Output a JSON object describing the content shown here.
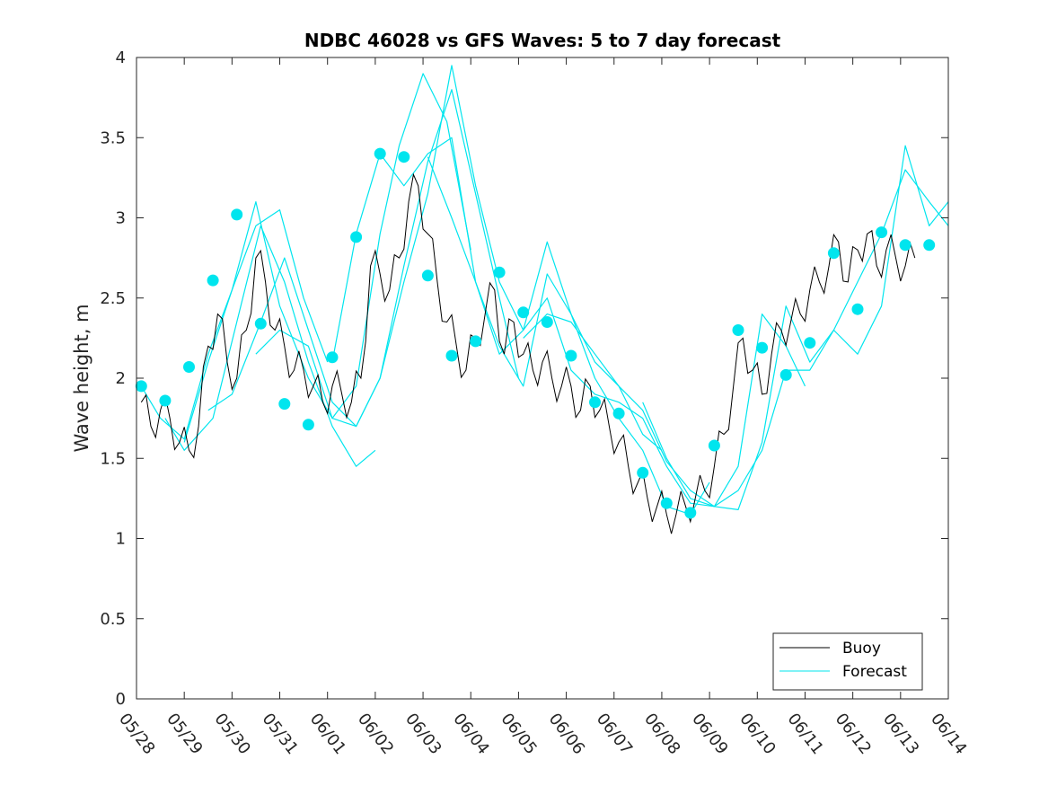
{
  "chart_data": {
    "type": "line",
    "title": "NDBC 46028 vs GFS Waves: 5 to 7 day forecast",
    "xlabel": "",
    "ylabel": "Wave height, m",
    "xlim": [
      0,
      17
    ],
    "ylim": [
      0,
      4
    ],
    "x_unit": "days since 05/28",
    "x_ticks": [
      0,
      1,
      2,
      3,
      4,
      5,
      6,
      7,
      8,
      9,
      10,
      11,
      12,
      13,
      14,
      15,
      16,
      17
    ],
    "x_tick_labels": [
      "05/28",
      "05/29",
      "05/30",
      "05/31",
      "06/01",
      "06/02",
      "06/03",
      "06/04",
      "06/05",
      "06/06",
      "06/07",
      "06/08",
      "06/09",
      "06/10",
      "06/11",
      "06/12",
      "06/13",
      "06/14"
    ],
    "y_ticks": [
      0,
      0.5,
      1,
      1.5,
      2,
      2.5,
      3,
      3.5,
      4
    ],
    "y_tick_labels": [
      "0",
      "0.5",
      "1",
      "1.5",
      "2",
      "2.5",
      "3",
      "3.5",
      "4"
    ],
    "legend": {
      "position": "bottom-right",
      "entries": [
        {
          "label": "Buoy",
          "color": "#000000"
        },
        {
          "label": "Forecast",
          "color": "#00e5ee"
        }
      ]
    },
    "series": [
      {
        "name": "Buoy",
        "color": "#000000",
        "x": [
          0.1,
          0.3,
          0.5,
          0.7,
          0.9,
          1.1,
          1.3,
          1.5,
          1.7,
          1.9,
          2.1,
          2.3,
          2.5,
          2.7,
          2.9,
          3.1,
          3.3,
          3.5,
          3.7,
          3.9,
          4.1,
          4.3,
          4.5,
          4.7,
          4.9,
          5.1,
          5.3,
          5.5,
          5.7,
          5.9,
          6.1,
          6.3,
          6.5,
          6.7,
          6.9,
          7.1,
          7.3,
          7.5,
          7.7,
          7.9,
          8.1,
          8.3,
          8.5,
          8.7,
          8.9,
          9.1,
          9.3,
          9.5,
          9.7,
          9.9,
          10.1,
          10.3,
          10.5,
          10.7,
          10.9,
          11.1,
          11.3,
          11.5,
          11.7,
          11.9,
          12.1,
          12.3,
          12.5,
          12.7,
          12.9,
          13.1,
          13.3,
          13.5,
          13.7,
          13.9,
          14.1,
          14.3,
          14.5,
          14.7,
          14.9,
          15.1,
          15.3,
          15.5,
          15.7,
          15.9,
          16.1,
          16.3
        ],
        "y": [
          1.85,
          1.7,
          1.8,
          1.75,
          1.6,
          1.55,
          1.7,
          2.2,
          2.4,
          2.1,
          2.0,
          2.3,
          2.75,
          2.6,
          2.3,
          2.2,
          2.05,
          2.05,
          1.95,
          1.85,
          1.95,
          1.9,
          1.85,
          2.0,
          2.7,
          2.65,
          2.55,
          2.75,
          3.1,
          3.2,
          2.9,
          2.6,
          2.35,
          2.2,
          2.05,
          2.25,
          2.4,
          2.55,
          2.15,
          2.35,
          2.15,
          2.05,
          2.1,
          2.0,
          1.95,
          1.95,
          1.8,
          1.95,
          1.8,
          1.7,
          1.6,
          1.45,
          1.35,
          1.25,
          1.2,
          1.15,
          1.15,
          1.2,
          1.25,
          1.3,
          1.45,
          1.65,
          1.95,
          2.25,
          2.05,
          1.9,
          2.15,
          2.3,
          2.35,
          2.4,
          2.55,
          2.6,
          2.7,
          2.85,
          2.6,
          2.8,
          2.9,
          2.7,
          2.8,
          2.75,
          2.7,
          2.75
        ]
      },
      {
        "name": "Forecast",
        "color": "#00e5ee",
        "segments": [
          {
            "x": [
              0.1,
              0.5,
              1.0,
              1.5,
              2.0,
              2.5,
              3.0,
              3.5,
              4.0
            ],
            "y": [
              1.95,
              1.75,
              1.62,
              2.15,
              2.55,
              2.95,
              3.05,
              2.5,
              2.1
            ]
          },
          {
            "x": [
              0.6,
              1.0,
              1.6,
              2.1,
              2.6,
              3.1,
              3.6,
              4.1,
              4.6,
              5.0
            ],
            "y": [
              1.75,
              1.55,
              1.75,
              2.35,
              2.95,
              2.6,
              2.1,
              1.7,
              1.45,
              1.55
            ]
          },
          {
            "x": [
              1.0,
              1.5,
              2.0,
              2.5,
              3.0,
              3.6,
              4.1,
              4.6,
              5.1,
              5.5,
              6.0,
              6.5,
              7.0
            ],
            "y": [
              1.6,
              2.1,
              2.55,
              3.1,
              2.45,
              2.0,
              1.75,
              1.95,
              2.9,
              3.45,
              3.9,
              3.6,
              2.8
            ]
          },
          {
            "x": [
              1.5,
              2.0,
              2.6,
              3.1,
              3.6,
              4.1,
              4.6,
              5.1,
              5.6,
              6.1,
              6.6,
              7.1,
              7.6,
              8.0
            ],
            "y": [
              1.8,
              1.9,
              2.35,
              2.75,
              2.3,
              1.85,
              1.7,
              2.0,
              2.7,
              3.35,
              3.8,
              3.15,
              2.5,
              2.0
            ]
          },
          {
            "x": [
              2.5,
              3.0,
              3.6,
              4.1,
              4.6,
              5.1,
              5.6,
              6.1,
              6.6,
              7.1,
              7.6,
              8.1,
              8.6,
              9.1,
              9.6,
              10.1,
              10.6,
              11.0
            ],
            "y": [
              2.15,
              2.3,
              2.2,
              1.75,
              1.7,
              2.0,
              2.6,
              3.15,
              3.95,
              3.2,
              2.6,
              2.3,
              2.85,
              2.4,
              2.1,
              1.95,
              1.65,
              1.55
            ]
          },
          {
            "x": [
              4.1,
              4.6,
              5.1,
              5.6,
              6.1,
              6.6,
              7.1,
              7.6,
              8.1,
              8.6,
              9.1,
              9.6,
              10.1,
              10.6,
              11.1,
              11.6,
              12.0
            ],
            "y": [
              2.1,
              2.9,
              3.4,
              3.2,
              3.4,
              3.5,
              2.6,
              2.2,
              1.95,
              2.65,
              2.4,
              2.0,
              1.75,
              1.55,
              1.2,
              1.15,
              1.35
            ]
          },
          {
            "x": [
              6.1,
              6.6,
              7.1,
              7.6,
              8.1,
              8.6,
              9.1,
              9.6,
              10.1,
              10.6,
              11.1,
              11.6,
              12.1,
              12.6,
              13.1,
              13.6,
              14.0
            ],
            "y": [
              3.38,
              3.0,
              2.6,
              2.15,
              2.3,
              2.5,
              2.05,
              1.9,
              1.85,
              1.75,
              1.45,
              1.22,
              1.2,
              1.45,
              2.4,
              2.2,
              1.95
            ]
          },
          {
            "x": [
              8.1,
              8.6,
              9.1,
              9.6,
              10.1,
              10.6,
              11.1,
              11.6,
              12.1,
              12.6,
              13.1,
              13.6,
              14.1,
              14.6,
              15.1,
              15.6,
              16.1,
              16.6,
              17.0
            ],
            "y": [
              2.25,
              2.4,
              2.35,
              2.15,
              1.95,
              1.8,
              1.48,
              1.3,
              1.2,
              1.18,
              1.6,
              2.45,
              2.1,
              2.3,
              2.6,
              2.9,
              3.3,
              3.1,
              2.95
            ]
          },
          {
            "x": [
              10.6,
              11.1,
              11.6,
              12.1,
              12.6,
              13.1,
              13.6,
              14.1,
              14.6,
              15.1,
              15.6,
              16.1,
              16.6,
              17.0
            ],
            "y": [
              1.85,
              1.5,
              1.25,
              1.2,
              1.3,
              1.55,
              2.05,
              2.05,
              2.3,
              2.15,
              2.45,
              3.45,
              2.95,
              3.1
            ]
          }
        ],
        "markers": {
          "x": [
            0.1,
            0.6,
            1.1,
            1.6,
            2.1,
            2.6,
            3.1,
            3.6,
            4.1,
            4.6,
            5.1,
            5.6,
            6.1,
            6.6,
            7.1,
            7.6,
            8.1,
            8.6,
            9.1,
            9.6,
            10.1,
            10.6,
            11.1,
            11.6,
            12.1,
            12.6,
            13.1,
            13.6,
            14.1,
            14.6,
            15.1,
            15.6,
            16.1,
            16.6
          ],
          "y": [
            1.95,
            1.86,
            2.07,
            2.61,
            3.02,
            2.34,
            1.84,
            1.71,
            2.13,
            2.88,
            3.4,
            3.38,
            2.64,
            2.14,
            2.23,
            2.66,
            2.41,
            2.35,
            2.14,
            1.85,
            1.78,
            1.41,
            1.22,
            1.16,
            1.58,
            2.3,
            2.19,
            2.02,
            2.22,
            2.78,
            2.43,
            2.91,
            2.83,
            2.83
          ]
        }
      }
    ]
  }
}
